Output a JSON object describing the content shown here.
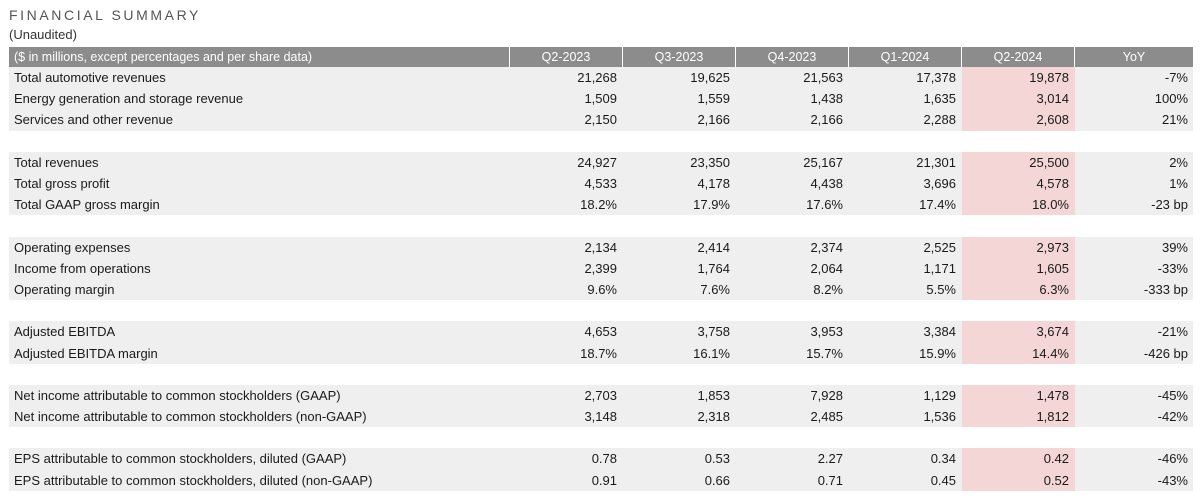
{
  "title": "FINANCIAL SUMMARY",
  "subtitle": "(Unaudited)",
  "header": {
    "label": "($ in millions, except percentages and per share data)",
    "cols": [
      "Q2-2023",
      "Q3-2023",
      "Q4-2023",
      "Q1-2024",
      "Q2-2024",
      "YoY"
    ]
  },
  "groups": [
    {
      "rows": [
        {
          "label": "Total automotive revenues",
          "values": [
            "21,268",
            "19,625",
            "21,563",
            "17,378",
            "19,878",
            "-7%"
          ]
        },
        {
          "label": "Energy generation and storage revenue",
          "values": [
            "1,509",
            "1,559",
            "1,438",
            "1,635",
            "3,014",
            "100%"
          ]
        },
        {
          "label": "Services and other revenue",
          "values": [
            "2,150",
            "2,166",
            "2,166",
            "2,288",
            "2,608",
            "21%"
          ]
        }
      ]
    },
    {
      "rows": [
        {
          "label": "Total revenues",
          "values": [
            "24,927",
            "23,350",
            "25,167",
            "21,301",
            "25,500",
            "2%"
          ]
        },
        {
          "label": "Total gross profit",
          "values": [
            "4,533",
            "4,178",
            "4,438",
            "3,696",
            "4,578",
            "1%"
          ]
        },
        {
          "label": "Total GAAP gross margin",
          "values": [
            "18.2%",
            "17.9%",
            "17.6%",
            "17.4%",
            "18.0%",
            "-23 bp"
          ]
        }
      ]
    },
    {
      "rows": [
        {
          "label": "Operating expenses",
          "values": [
            "2,134",
            "2,414",
            "2,374",
            "2,525",
            "2,973",
            "39%"
          ]
        },
        {
          "label": "Income from operations",
          "values": [
            "2,399",
            "1,764",
            "2,064",
            "1,171",
            "1,605",
            "-33%"
          ]
        },
        {
          "label": "Operating margin",
          "values": [
            "9.6%",
            "7.6%",
            "8.2%",
            "5.5%",
            "6.3%",
            "-333 bp"
          ]
        }
      ]
    },
    {
      "rows": [
        {
          "label": "Adjusted EBITDA",
          "values": [
            "4,653",
            "3,758",
            "3,953",
            "3,384",
            "3,674",
            "-21%"
          ]
        },
        {
          "label": "Adjusted EBITDA margin",
          "values": [
            "18.7%",
            "16.1%",
            "15.7%",
            "15.9%",
            "14.4%",
            "-426 bp"
          ]
        }
      ]
    },
    {
      "rows": [
        {
          "label": "Net income attributable to common stockholders (GAAP)",
          "values": [
            "2,703",
            "1,853",
            "7,928",
            "1,129",
            "1,478",
            "-45%"
          ]
        },
        {
          "label": "Net income attributable to common stockholders (non-GAAP)",
          "values": [
            "3,148",
            "2,318",
            "2,485",
            "1,536",
            "1,812",
            "-42%"
          ]
        }
      ]
    },
    {
      "rows": [
        {
          "label": "EPS attributable to common stockholders, diluted (GAAP)",
          "values": [
            "0.78",
            "0.53",
            "2.27",
            "0.34",
            "0.42",
            "-46%"
          ]
        },
        {
          "label": "EPS attributable to common stockholders, diluted (non-GAAP)",
          "values": [
            "0.91",
            "0.66",
            "0.71",
            "0.45",
            "0.52",
            "-43%"
          ]
        }
      ]
    }
  ],
  "colors": {
    "header_bg": "#8c8c8c",
    "row_bg": "#efefef",
    "highlight_bg": "#f4d6d6"
  }
}
